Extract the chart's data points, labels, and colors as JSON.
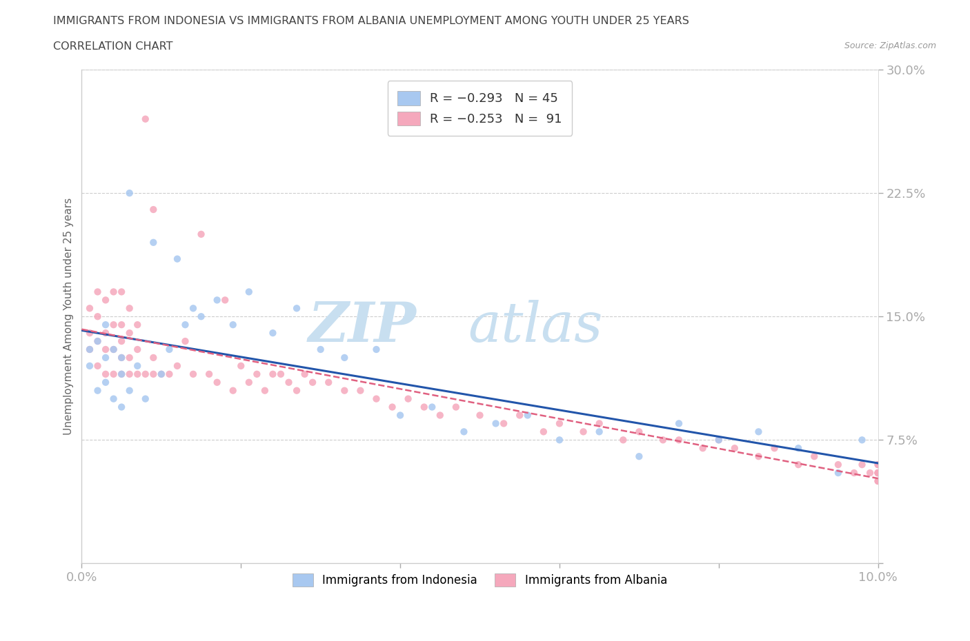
{
  "title_line1": "IMMIGRANTS FROM INDONESIA VS IMMIGRANTS FROM ALBANIA UNEMPLOYMENT AMONG YOUTH UNDER 25 YEARS",
  "title_line2": "CORRELATION CHART",
  "source_text": "Source: ZipAtlas.com",
  "ylabel": "Unemployment Among Youth under 25 years",
  "xlim": [
    0.0,
    0.1
  ],
  "ylim": [
    0.0,
    0.3
  ],
  "xticks": [
    0.0,
    0.02,
    0.04,
    0.06,
    0.08,
    0.1
  ],
  "xticklabels": [
    "0.0%",
    "",
    "",
    "",
    "",
    "10.0%"
  ],
  "yticks": [
    0.0,
    0.075,
    0.15,
    0.225,
    0.3
  ],
  "yticklabels": [
    "",
    "7.5%",
    "15.0%",
    "22.5%",
    "30.0%"
  ],
  "indonesia_color": "#a8c8f0",
  "albania_color": "#f5a8bc",
  "indonesia_line_color": "#2255aa",
  "albania_line_color": "#e06080",
  "indonesia_x": [
    0.001,
    0.001,
    0.002,
    0.002,
    0.003,
    0.003,
    0.003,
    0.004,
    0.004,
    0.005,
    0.005,
    0.005,
    0.006,
    0.006,
    0.007,
    0.008,
    0.009,
    0.01,
    0.011,
    0.012,
    0.013,
    0.014,
    0.015,
    0.017,
    0.019,
    0.021,
    0.024,
    0.027,
    0.03,
    0.033,
    0.037,
    0.04,
    0.044,
    0.048,
    0.052,
    0.056,
    0.06,
    0.065,
    0.07,
    0.075,
    0.08,
    0.085,
    0.09,
    0.095,
    0.098
  ],
  "indonesia_y": [
    0.12,
    0.13,
    0.105,
    0.135,
    0.11,
    0.125,
    0.145,
    0.1,
    0.13,
    0.095,
    0.115,
    0.125,
    0.225,
    0.105,
    0.12,
    0.1,
    0.195,
    0.115,
    0.13,
    0.185,
    0.145,
    0.155,
    0.15,
    0.16,
    0.145,
    0.165,
    0.14,
    0.155,
    0.13,
    0.125,
    0.13,
    0.09,
    0.095,
    0.08,
    0.085,
    0.09,
    0.075,
    0.08,
    0.065,
    0.085,
    0.075,
    0.08,
    0.07,
    0.055,
    0.075
  ],
  "albania_x": [
    0.001,
    0.001,
    0.001,
    0.002,
    0.002,
    0.002,
    0.002,
    0.003,
    0.003,
    0.003,
    0.003,
    0.004,
    0.004,
    0.004,
    0.004,
    0.005,
    0.005,
    0.005,
    0.005,
    0.005,
    0.006,
    0.006,
    0.006,
    0.006,
    0.007,
    0.007,
    0.007,
    0.008,
    0.008,
    0.009,
    0.009,
    0.009,
    0.01,
    0.011,
    0.012,
    0.013,
    0.014,
    0.015,
    0.016,
    0.017,
    0.018,
    0.019,
    0.02,
    0.021,
    0.022,
    0.023,
    0.024,
    0.025,
    0.026,
    0.027,
    0.028,
    0.029,
    0.031,
    0.033,
    0.035,
    0.037,
    0.039,
    0.041,
    0.043,
    0.045,
    0.047,
    0.05,
    0.053,
    0.055,
    0.058,
    0.06,
    0.063,
    0.065,
    0.068,
    0.07,
    0.073,
    0.075,
    0.078,
    0.08,
    0.082,
    0.085,
    0.087,
    0.09,
    0.092,
    0.095,
    0.097,
    0.098,
    0.099,
    0.1,
    0.1,
    0.1,
    0.1,
    0.1,
    0.1,
    0.1,
    0.1
  ],
  "albania_y": [
    0.13,
    0.14,
    0.155,
    0.12,
    0.135,
    0.15,
    0.165,
    0.115,
    0.13,
    0.14,
    0.16,
    0.115,
    0.13,
    0.145,
    0.165,
    0.115,
    0.125,
    0.135,
    0.145,
    0.165,
    0.115,
    0.125,
    0.14,
    0.155,
    0.115,
    0.13,
    0.145,
    0.115,
    0.27,
    0.115,
    0.125,
    0.215,
    0.115,
    0.115,
    0.12,
    0.135,
    0.115,
    0.2,
    0.115,
    0.11,
    0.16,
    0.105,
    0.12,
    0.11,
    0.115,
    0.105,
    0.115,
    0.115,
    0.11,
    0.105,
    0.115,
    0.11,
    0.11,
    0.105,
    0.105,
    0.1,
    0.095,
    0.1,
    0.095,
    0.09,
    0.095,
    0.09,
    0.085,
    0.09,
    0.08,
    0.085,
    0.08,
    0.085,
    0.075,
    0.08,
    0.075,
    0.075,
    0.07,
    0.075,
    0.07,
    0.065,
    0.07,
    0.06,
    0.065,
    0.06,
    0.055,
    0.06,
    0.055,
    0.06,
    0.06,
    0.055,
    0.055,
    0.05,
    0.055,
    0.05,
    0.055
  ]
}
